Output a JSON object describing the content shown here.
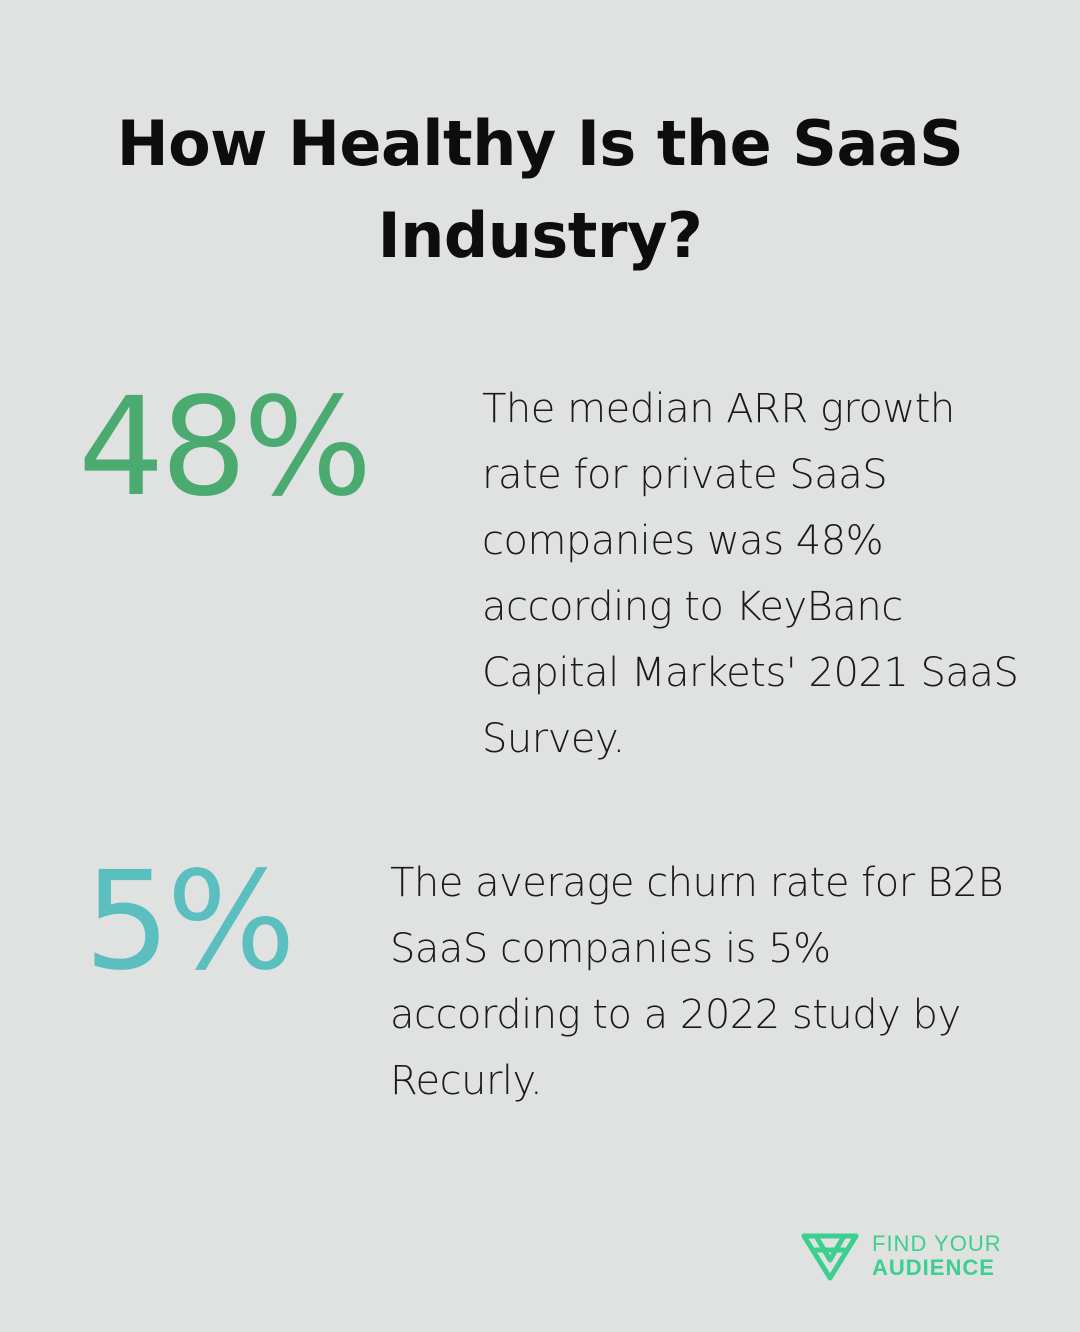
{
  "title": "How Healthy Is the SaaS Industry?",
  "stats": [
    {
      "value": "48%",
      "description": "The median ARR growth rate for private SaaS companies was 48% according to KeyBanc Capital Markets' 2021 SaaS Survey.",
      "color": "#4baa6f"
    },
    {
      "value": "5%",
      "description": "The average churn rate for B2B SaaS companies is 5% according to a 2022 study by Recurly.",
      "color": "#5bbfbf"
    }
  ],
  "brand": {
    "line1": "FIND YOUR",
    "line2": "AUDIENCE",
    "icon": "find-your-audience-logo-icon",
    "color": "#3ccf8f"
  },
  "background": "#e0e2e1"
}
